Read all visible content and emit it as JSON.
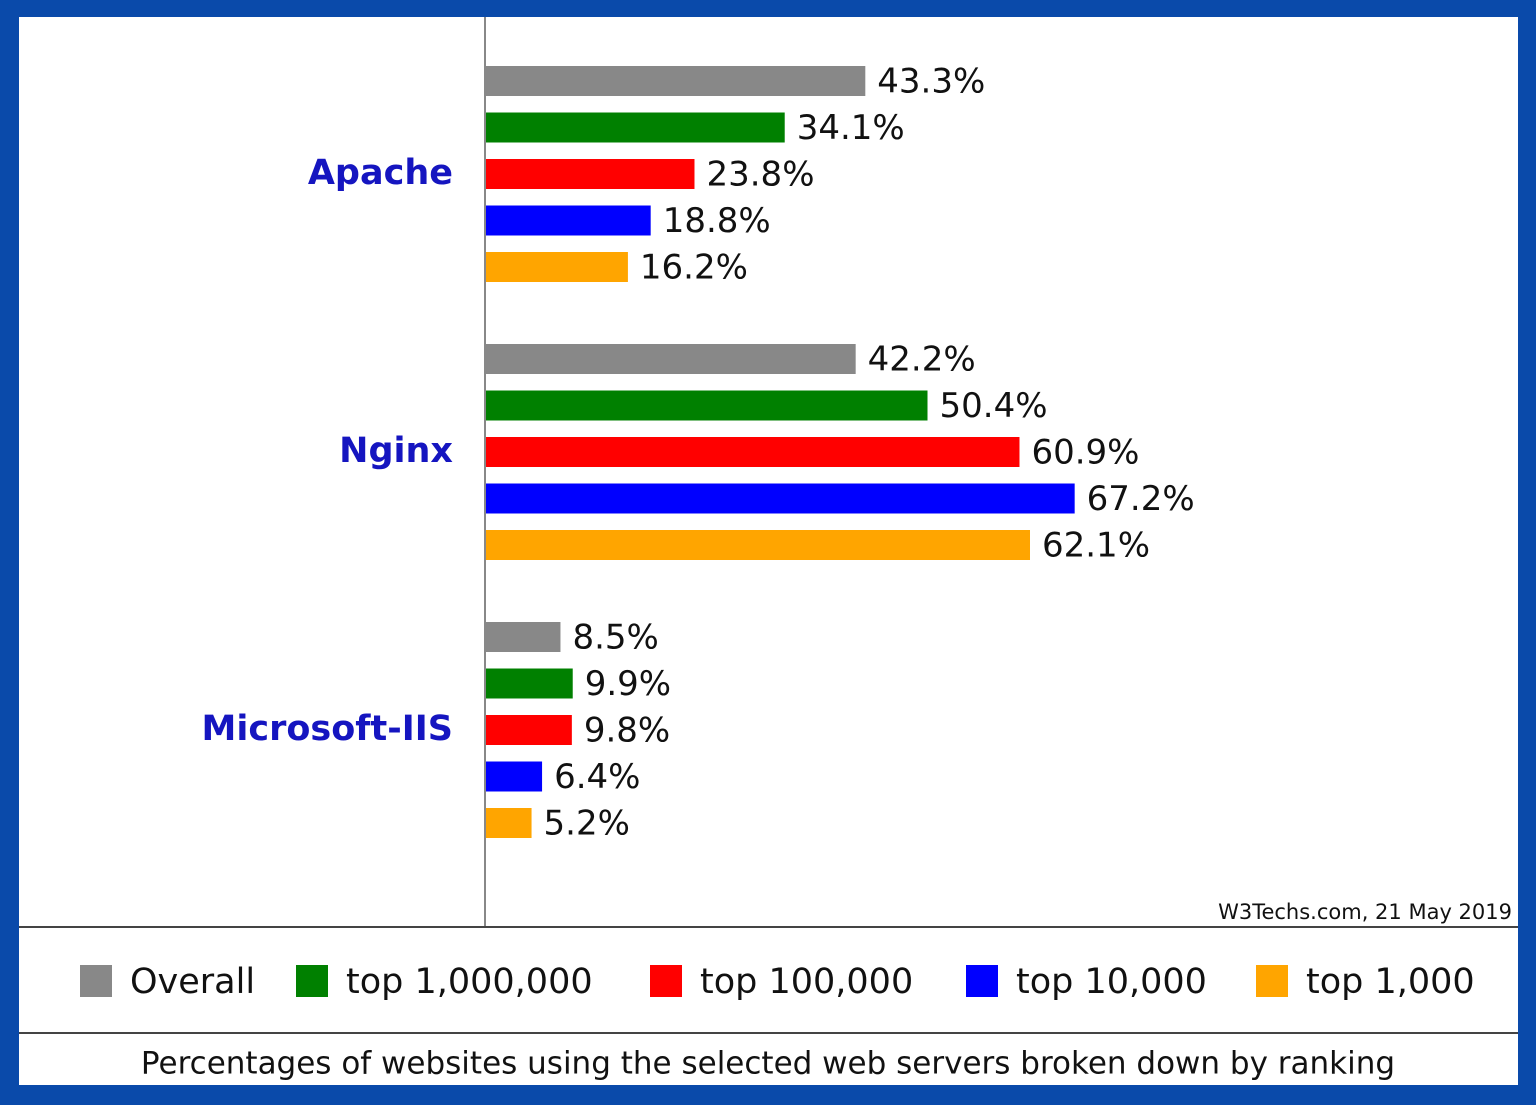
{
  "chart_data": {
    "type": "bar",
    "orientation": "horizontal",
    "categories": [
      "Apache",
      "Nginx",
      "Microsoft-IIS"
    ],
    "series": [
      {
        "name": "Overall",
        "color": "#888888",
        "values": [
          43.3,
          42.2,
          8.5
        ],
        "value_labels": [
          "43.3%",
          "42.2%",
          "8.5%"
        ]
      },
      {
        "name": "top 1,000,000",
        "color": "#008000",
        "values": [
          34.1,
          50.4,
          9.9
        ],
        "value_labels": [
          "34.1%",
          "50.4%",
          "9.9%"
        ]
      },
      {
        "name": "top 100,000",
        "color": "#ff0000",
        "values": [
          23.8,
          60.9,
          9.8
        ],
        "value_labels": [
          "23.8%",
          "60.9%",
          "9.8%"
        ]
      },
      {
        "name": "top 10,000",
        "color": "#0000ff",
        "values": [
          18.8,
          67.2,
          6.4
        ],
        "value_labels": [
          "18.8%",
          "67.2%",
          "6.4%"
        ]
      },
      {
        "name": "top 1,000",
        "color": "#ffa500",
        "values": [
          16.2,
          62.1,
          5.2
        ],
        "value_labels": [
          "16.2%",
          "62.1%",
          "5.2%"
        ]
      }
    ],
    "source": "W3Techs.com, 21 May 2019",
    "caption": "Percentages of websites using the selected web servers broken down by ranking"
  }
}
